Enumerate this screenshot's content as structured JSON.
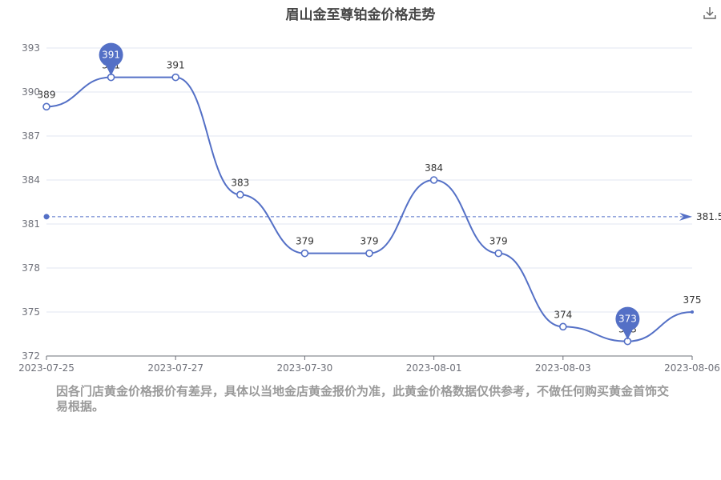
{
  "title": "眉山金至尊铂金价格走势",
  "footnote": "因各门店黄金价格报价有差异，具体以当地金店黄金报价为准，此黄金价格数据仅供参考，不做任何购买黄金首饰交易根据。",
  "icons": {
    "download": "download-icon"
  },
  "colors": {
    "line": "#5470c6",
    "grid": "#e0e6f1",
    "axis": "#6e7079",
    "label": "#333333",
    "faded_label": "#cccccc"
  },
  "chart_data": {
    "type": "line",
    "title": "眉山金至尊铂金价格走势",
    "x": [
      "2023-07-25",
      "2023-07-26",
      "2023-07-27",
      "2023-07-28",
      "2023-07-30",
      "2023-07-31",
      "2023-08-01",
      "2023-08-02",
      "2023-08-03",
      "2023-08-04",
      "2023-08-06"
    ],
    "values": [
      389,
      391,
      391,
      383,
      379,
      379,
      384,
      379,
      374,
      373,
      375
    ],
    "x_tick_labels": [
      "2023-07-25",
      "2023-07-27",
      "2023-07-30",
      "2023-08-01",
      "2023-08-03",
      "2023-08-06"
    ],
    "y_ticks": [
      372,
      375,
      378,
      381,
      384,
      387,
      390,
      393
    ],
    "ylim": [
      372,
      393
    ],
    "smooth": true,
    "max_marker": {
      "label": "391"
    },
    "min_marker": {
      "label": "373"
    },
    "average_line": {
      "value": 381.5,
      "label": "381.5"
    },
    "grid": true,
    "xlabel": "",
    "ylabel": ""
  }
}
